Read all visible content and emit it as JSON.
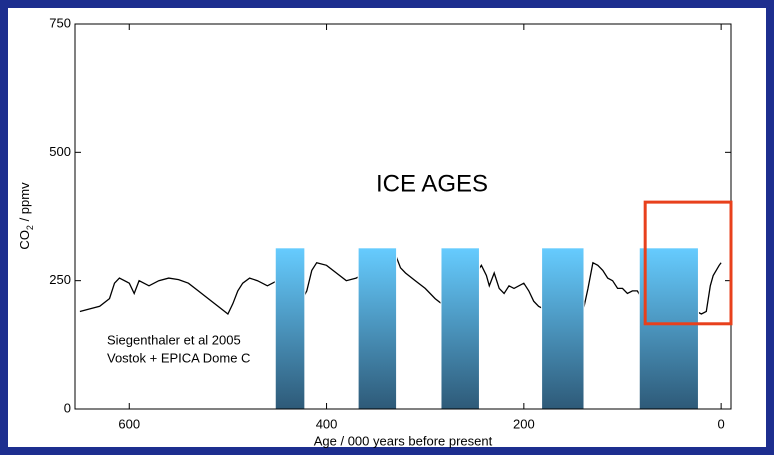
{
  "chart_data": {
    "type": "line",
    "ylabel": [
      "CO",
      "2",
      " / ppmv"
    ],
    "xlabel": "Age / 000 years before present",
    "annotations": [
      "ICE AGES",
      "Siegenthaler et al 2005",
      "Vostok + EPICA Dome C"
    ],
    "xlim": [
      655,
      -10
    ],
    "ylim": [
      0,
      750
    ],
    "xticks": [
      600,
      400,
      200,
      0
    ],
    "yticks": [
      0,
      250,
      500,
      750
    ],
    "color": "#000000",
    "x": [
      650,
      640,
      630,
      620,
      615,
      610,
      600,
      595,
      590,
      580,
      570,
      560,
      550,
      540,
      530,
      520,
      510,
      500,
      495,
      490,
      485,
      478,
      470,
      460,
      450,
      440,
      430,
      420,
      415,
      410,
      400,
      390,
      380,
      370,
      360,
      350,
      340,
      335,
      330,
      325,
      320,
      310,
      300,
      290,
      280,
      270,
      260,
      250,
      243,
      238,
      235,
      230,
      225,
      220,
      215,
      210,
      200,
      195,
      190,
      185,
      180,
      170,
      160,
      150,
      140,
      135,
      130,
      125,
      120,
      115,
      110,
      105,
      100,
      95,
      90,
      85,
      80,
      75,
      70,
      60,
      50,
      40,
      30,
      20,
      15,
      11,
      8,
      5,
      2,
      0
    ],
    "values": [
      190,
      195,
      200,
      215,
      245,
      255,
      245,
      225,
      250,
      240,
      250,
      255,
      252,
      245,
      230,
      215,
      200,
      185,
      205,
      230,
      245,
      255,
      250,
      240,
      250,
      220,
      195,
      230,
      270,
      285,
      280,
      265,
      250,
      255,
      265,
      235,
      215,
      245,
      300,
      275,
      265,
      250,
      235,
      215,
      200,
      195,
      230,
      260,
      280,
      260,
      240,
      265,
      235,
      225,
      240,
      235,
      245,
      230,
      210,
      200,
      195,
      195,
      200,
      195,
      190,
      235,
      285,
      280,
      270,
      255,
      250,
      235,
      235,
      225,
      230,
      230,
      215,
      200,
      210,
      215,
      210,
      200,
      195,
      185,
      190,
      240,
      260,
      270,
      280,
      285
    ],
    "ice_ages": {
      "color_top": "#66ccff",
      "color_bottom": "#2e5a78",
      "top": 314,
      "ranges": [
        [
          452,
          422
        ],
        [
          368,
          329
        ],
        [
          284,
          245
        ],
        [
          182,
          139
        ],
        [
          83,
          23
        ]
      ]
    },
    "highlight": {
      "color": "#e8401c",
      "x": [
        77,
        -10
      ],
      "y": [
        166,
        403
      ]
    }
  }
}
